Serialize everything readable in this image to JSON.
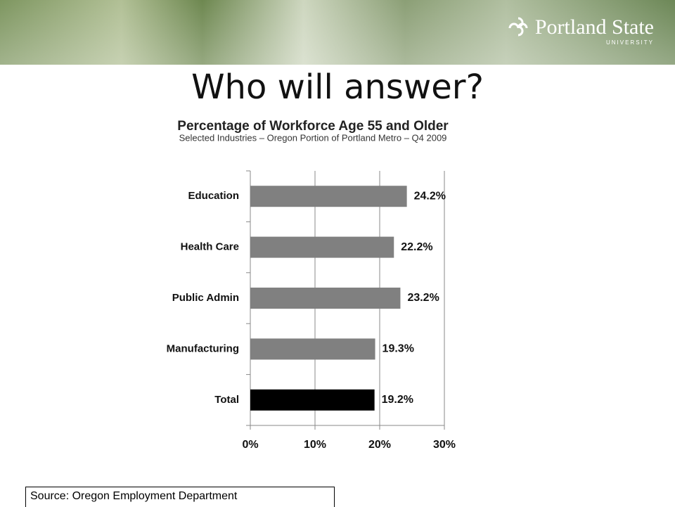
{
  "header": {
    "logo_text": "Portland State",
    "logo_subtext": "UNIVERSITY"
  },
  "slide_title": "Who will answer?",
  "chart_data": {
    "type": "bar",
    "orientation": "horizontal",
    "title": "Percentage of Workforce Age 55 and Older",
    "subtitle": "Selected Industries – Oregon Portion of Portland Metro – Q4 2009",
    "categories": [
      "Education",
      "Health Care",
      "Public Admin",
      "Manufacturing",
      "Total"
    ],
    "values": [
      24.2,
      22.2,
      23.2,
      19.3,
      19.2
    ],
    "value_labels": [
      "24.2%",
      "22.2%",
      "23.2%",
      "19.3%",
      "19.2%"
    ],
    "colors": [
      "#808080",
      "#808080",
      "#808080",
      "#808080",
      "#000000"
    ],
    "xlim": [
      0,
      30
    ],
    "xticks": [
      {
        "value": 0,
        "label": "0%"
      },
      {
        "value": 10,
        "label": "10%"
      },
      {
        "value": 20,
        "label": "20%"
      },
      {
        "value": 30,
        "label": "30%"
      }
    ],
    "grid": true
  },
  "footer": {
    "source": "Source: Oregon Employment Department"
  }
}
